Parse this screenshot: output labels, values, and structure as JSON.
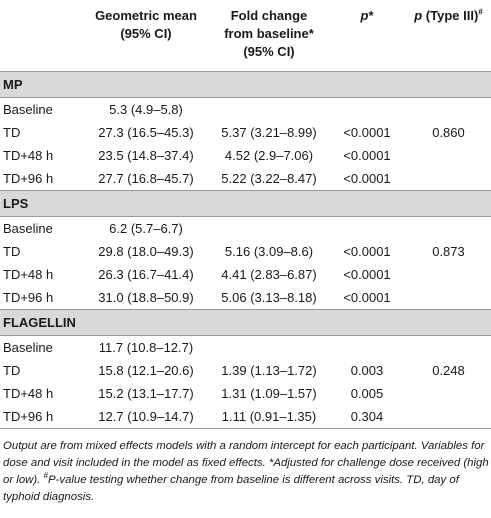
{
  "header": {
    "col_geo_line1": "Geometric mean",
    "col_geo_line2": "(95% CI)",
    "col_fold_line1": "Fold change",
    "col_fold_line2": "from baseline*",
    "col_fold_line3": "(95% CI)",
    "col_p": "p",
    "col_p_suffix": "*",
    "col_p3": "p",
    "col_p3_suffix": " (Type III)",
    "col_p3_mark": "#"
  },
  "sections": [
    {
      "name": "MP",
      "rows": [
        {
          "label": "Baseline",
          "gm": "5.3 (4.9–5.8)",
          "fold": "",
          "p": "",
          "p3": ""
        },
        {
          "label": "TD",
          "gm": "27.3 (16.5–45.3)",
          "fold": "5.37 (3.21–8.99)",
          "p": "<0.0001",
          "p3": "0.860"
        },
        {
          "label": "TD+48 h",
          "gm": "23.5 (14.8–37.4)",
          "fold": "4.52 (2.9–7.06)",
          "p": "<0.0001",
          "p3": ""
        },
        {
          "label": "TD+96 h",
          "gm": "27.7 (16.8–45.7)",
          "fold": "5.22 (3.22–8.47)",
          "p": "<0.0001",
          "p3": ""
        }
      ]
    },
    {
      "name": "LPS",
      "rows": [
        {
          "label": "Baseline",
          "gm": "6.2 (5.7–6.7)",
          "fold": "",
          "p": "",
          "p3": ""
        },
        {
          "label": "TD",
          "gm": "29.8 (18.0–49.3)",
          "fold": "5.16 (3.09–8.6)",
          "p": "<0.0001",
          "p3": "0.873"
        },
        {
          "label": "TD+48 h",
          "gm": "26.3 (16.7–41.4)",
          "fold": "4.41 (2.83–6.87)",
          "p": "<0.0001",
          "p3": ""
        },
        {
          "label": "TD+96 h",
          "gm": "31.0 (18.8–50.9)",
          "fold": "5.06 (3.13–8.18)",
          "p": "<0.0001",
          "p3": ""
        }
      ]
    },
    {
      "name": "FLAGELLIN",
      "rows": [
        {
          "label": "Baseline",
          "gm": "11.7 (10.8–12.7)",
          "fold": "",
          "p": "",
          "p3": ""
        },
        {
          "label": "TD",
          "gm": "15.8 (12.1–20.6)",
          "fold": "1.39 (1.13–1.72)",
          "p": "0.003",
          "p3": "0.248"
        },
        {
          "label": "TD+48 h",
          "gm": "15.2 (13.1–17.7)",
          "fold": "1.31 (1.09–1.57)",
          "p": "0.005",
          "p3": ""
        },
        {
          "label": "TD+96 h",
          "gm": "12.7 (10.9–14.7)",
          "fold": "1.11 (0.91–1.35)",
          "p": "0.304",
          "p3": ""
        }
      ]
    }
  ],
  "footnote": {
    "part1": "Output are from mixed effects models with a random intercept for each participant. Variables for dose and visit included in the model as fixed effects. *Adjusted for challenge dose received (high or low). ",
    "mark": "#",
    "part2": "P-value testing whether change from baseline is different across visits. TD, day of typhoid diagnosis."
  }
}
